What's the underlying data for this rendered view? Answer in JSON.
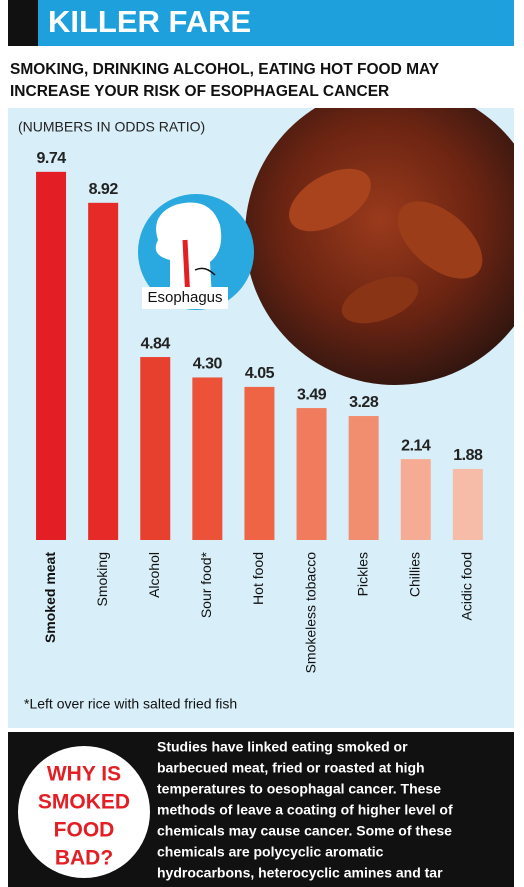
{
  "chart_data": {
    "type": "bar",
    "title": "KILLER FARE",
    "subtitle": [
      "SMOKING, DRINKING ALCOHOL, EATING HOT FOOD MAY",
      "INCREASE YOUR RISK OF ESOPHAGEAL CANCER"
    ],
    "unit_note": "(NUMBERS IN ODDS RATIO)",
    "annotation": "Esophagus",
    "footnote": "*Left over rice with salted fried fish",
    "categories": [
      "Smoked meat",
      "Smoking",
      "Alcohol",
      "Sour food*",
      "Hot food",
      "Smokeless tobacco",
      "Pickles",
      "Chillies",
      "Acidic food"
    ],
    "values": [
      9.74,
      8.92,
      4.84,
      4.3,
      4.05,
      3.49,
      3.28,
      2.14,
      1.88
    ],
    "value_labels": [
      "9.74",
      "8.92",
      "4.84",
      "4.30",
      "4.05",
      "3.49",
      "3.28",
      "2.14",
      "1.88"
    ],
    "colors": [
      "#e31e24",
      "#e52a27",
      "#e8402e",
      "#eb5238",
      "#ee6444",
      "#f07c5d",
      "#f28e70",
      "#f5ab94",
      "#f7bca8"
    ],
    "ylim": [
      0,
      10
    ]
  },
  "sidebar": {
    "heading": [
      "WHY IS",
      "SMOKED",
      "FOOD",
      "BAD?"
    ],
    "text": [
      "Studies have linked eating smoked or",
      "barbecued meat, fried or roasted at high",
      "temperatures to oesophagal cancer. These",
      "methods of leave a coating of higher level of",
      "chemicals may cause cancer. Some of these",
      "chemicals are polycyclic aromatic",
      "hydrocarbons, heterocyclic amines and tar"
    ]
  }
}
